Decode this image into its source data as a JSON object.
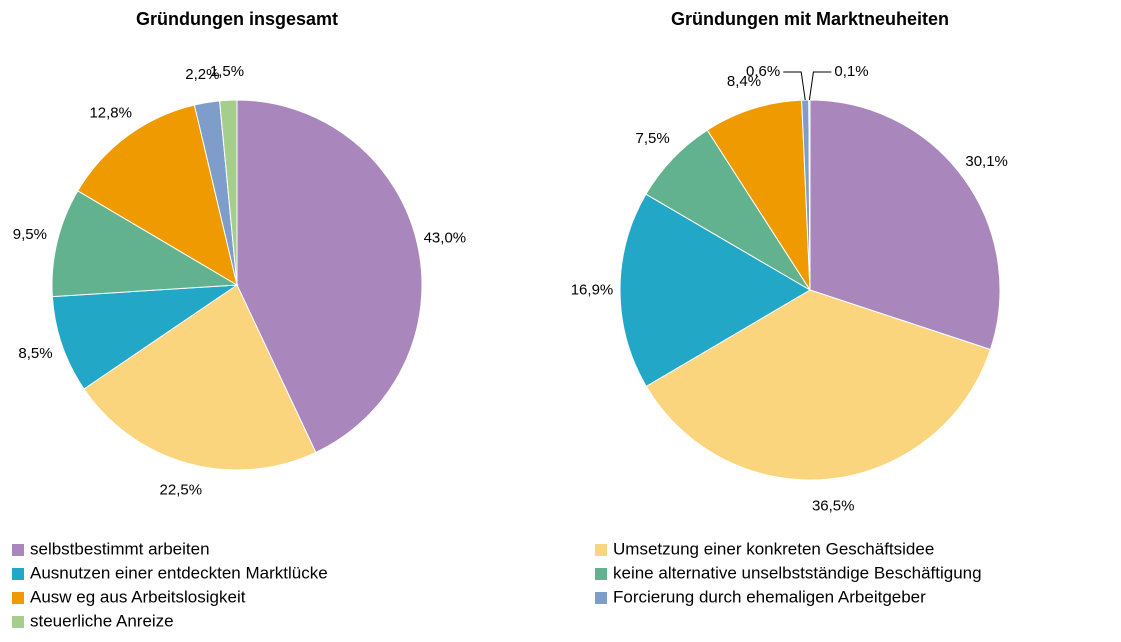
{
  "chart_data": [
    {
      "type": "pie",
      "title": "Gründungen insgesamt",
      "values": [
        43.0,
        22.5,
        8.5,
        9.5,
        12.8,
        2.2,
        1.5
      ],
      "value_labels": [
        "43,0%",
        "22,5%",
        "8,5%",
        "9,5%",
        "12,8%",
        "2,2%",
        "1,5%"
      ]
    },
    {
      "type": "pie",
      "title": "Gründungen mit Marktneuheiten",
      "values": [
        30.1,
        36.5,
        16.9,
        7.5,
        8.4,
        0.6,
        0.1
      ],
      "value_labels": [
        "30,1%",
        "36,5%",
        "16,9%",
        "7,5%",
        "8,4%",
        "0,6%",
        "0,1%"
      ]
    }
  ],
  "legend": {
    "labels": [
      "selbstbestimmt arbeiten",
      "Umsetzung einer konkreten Geschäftsidee",
      "Ausnutzen einer entdeckten Marktlücke",
      "keine alternative unselbstständige Beschäftigung",
      "Ausw eg aus Arbeitslosigkeit",
      "Forcierung durch ehemaligen Arbeitgeber",
      "steuerliche Anreize"
    ],
    "colors": [
      "#a986bc",
      "#fad57e",
      "#22a7c7",
      "#63b28f",
      "#ee9a00",
      "#7f9dcb",
      "#a5cd8c"
    ]
  }
}
